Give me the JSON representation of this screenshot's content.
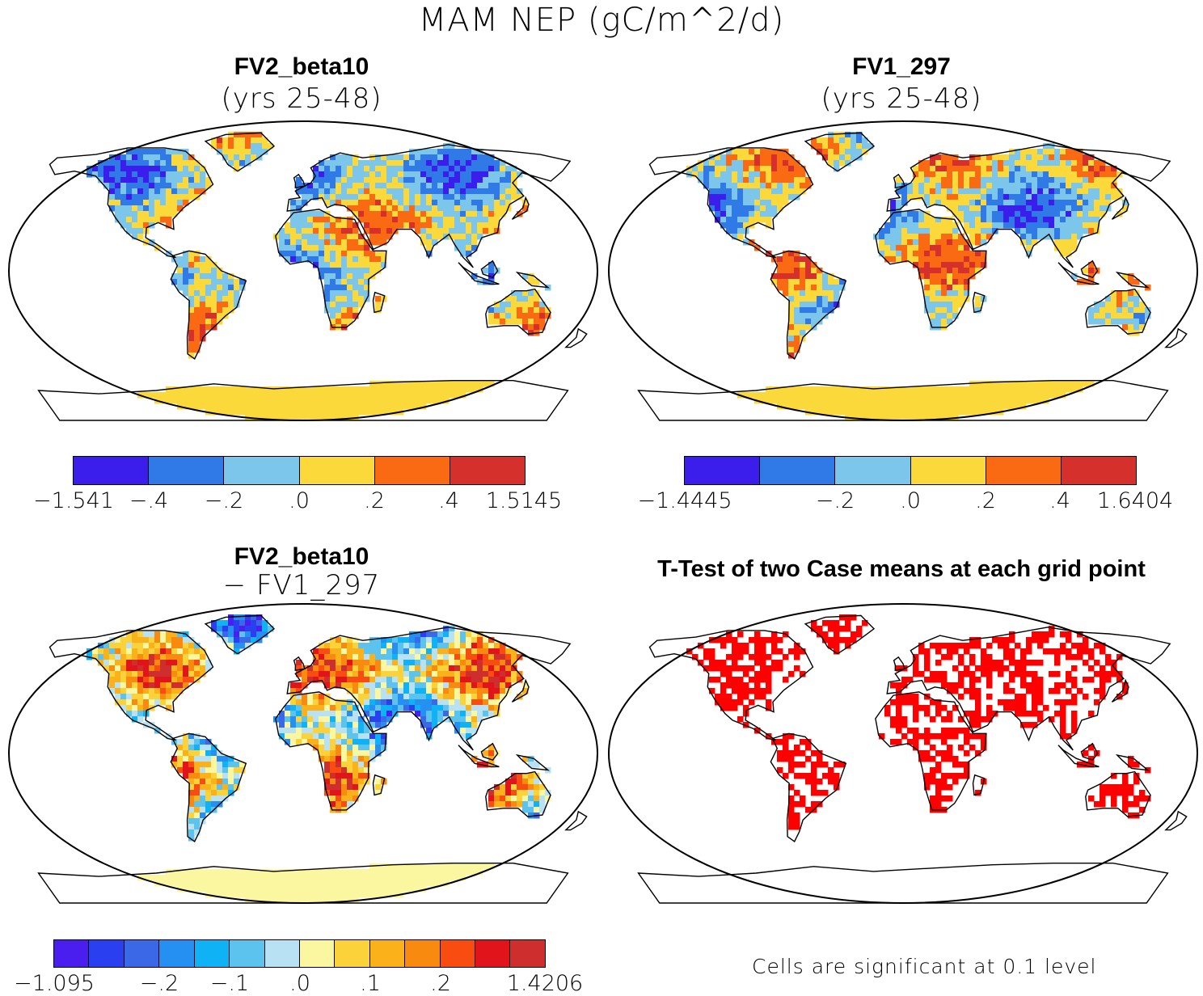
{
  "title": "MAM NEP (gC/m^2/d)",
  "panels": [
    {
      "id": "fv2",
      "title": "FV2_beta10",
      "subtitle": "(yrs 25-48)",
      "colorbar": {
        "colors": [
          "#3b1eeb",
          "#2f7ae6",
          "#7cc6ec",
          "#fbd93a",
          "#f96a12",
          "#d6302c"
        ],
        "labels": [
          "−1.541",
          "−.4",
          "−.2",
          ".0",
          ".2",
          ".4",
          "1.5145"
        ]
      }
    },
    {
      "id": "fv1",
      "title": "FV1_297",
      "subtitle": "(yrs 25-48)",
      "colorbar": {
        "colors": [
          "#3b1eeb",
          "#2f7ae6",
          "#7cc6ec",
          "#fbd93a",
          "#f96a12",
          "#d6302c"
        ],
        "labels": [
          "−1.4445",
          "−.2",
          ".0",
          ".2",
          ".4",
          "1.6404"
        ]
      }
    },
    {
      "id": "diff",
      "title": "FV2_beta10",
      "subtitle": "− FV1_297",
      "colorbar": {
        "colors": [
          "#4a1eee",
          "#2a3ff0",
          "#3a68e6",
          "#2690f2",
          "#0fb3f5",
          "#5cc3ee",
          "#b9e1f4",
          "#fbf6a0",
          "#fbd23a",
          "#fbb11a",
          "#f98a10",
          "#f84c10",
          "#e0141a",
          "#cf2e2e"
        ],
        "labels": [
          "−1.095",
          "−.2",
          "−.1",
          ".0",
          ".1",
          ".2",
          "1.4206"
        ]
      }
    },
    {
      "id": "ttest",
      "title": "T-Test of two Case means at each grid point",
      "note": "Cells are significant at 0.1 level",
      "colors": [
        "#ff0000"
      ]
    }
  ]
}
